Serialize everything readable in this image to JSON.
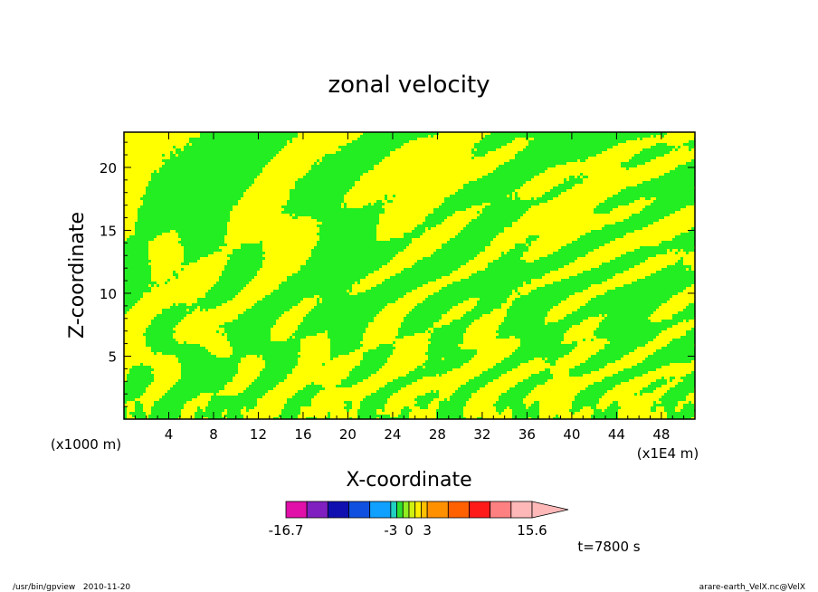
{
  "chart_data": {
    "type": "heatmap",
    "title": "zonal velocity",
    "xlabel": "X-coordinate",
    "ylabel": "Z-coordinate",
    "x_unit": "(x1E4 m)",
    "y_unit": "(x1000 m)",
    "xlim": [
      0,
      51
    ],
    "ylim": [
      0,
      22.8
    ],
    "x_ticks": [
      4,
      8,
      12,
      16,
      20,
      24,
      28,
      32,
      36,
      40,
      44,
      48
    ],
    "y_ticks": [
      5,
      10,
      15,
      20
    ],
    "grid": false,
    "colorbar": {
      "levels": [
        -16.7,
        -13.6,
        -10.5,
        -7.4,
        -4.3,
        -3,
        -2,
        -1,
        0,
        1,
        2,
        3,
        4.3,
        7.4,
        10.5,
        13.6,
        15.6
      ],
      "colors": [
        "#e010a8",
        "#8020c0",
        "#1010b0",
        "#1050e0",
        "#10a0ff",
        "#20d0c0",
        "#30e030",
        "#90ee20",
        "#d0f010",
        "#ffee00",
        "#ffc000",
        "#ff9000",
        "#ff6000",
        "#ff1a1a",
        "#ff8080",
        "#ffb8b8"
      ],
      "labels": [
        {
          "value": -16.7,
          "text": "-16.7"
        },
        {
          "value": -3,
          "text": "-3"
        },
        {
          "value": 0,
          "text": "0"
        },
        {
          "value": 3,
          "text": "3"
        },
        {
          "value": 15.6,
          "text": "15.6"
        }
      ],
      "extend": "max"
    },
    "field_colors": {
      "negative": "#22ee22",
      "positive": "#ffff00"
    },
    "time_label": "t=7800 s"
  },
  "footer": {
    "left": "/usr/bin/gpview   2010-11-20",
    "right": "arare-earth_VelX.nc@VelX"
  }
}
